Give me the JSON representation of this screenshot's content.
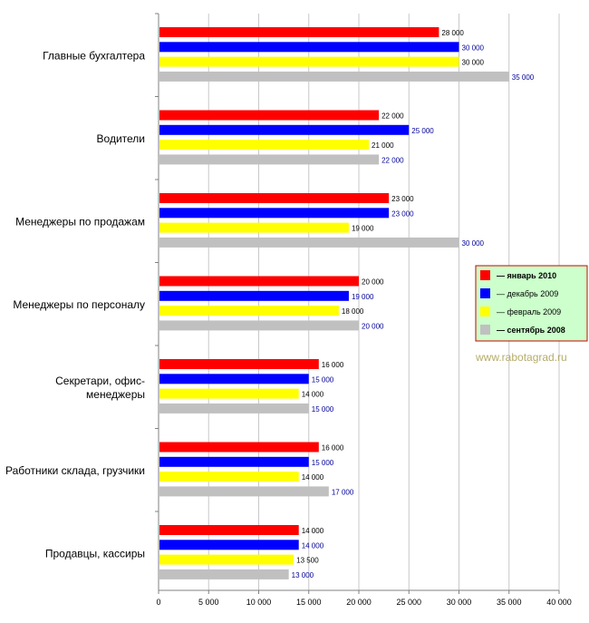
{
  "chart_data": {
    "type": "bar",
    "orientation": "horizontal",
    "categories": [
      "Главные бухгалтера",
      "Водители",
      "Менеджеры по продажам",
      "Менеджеры по персоналу",
      "Секретари, офис-менеджеры",
      "Работники склада, грузчики",
      "Продавцы, кассиры"
    ],
    "category_lines": [
      [
        "Главные бухгалтера"
      ],
      [
        "Водители"
      ],
      [
        "Менеджеры по продажам"
      ],
      [
        "Менеджеры по персоналу"
      ],
      [
        "Секретари, офис-",
        "менеджеры"
      ],
      [
        "Работники склада, грузчики"
      ],
      [
        "Продавцы, кассиры"
      ]
    ],
    "series": [
      {
        "name": "— январь 2010",
        "color": "#ff0000",
        "bold": true,
        "values": [
          28000,
          22000,
          23000,
          20000,
          16000,
          16000,
          14000
        ],
        "labels": [
          "28 000",
          "22 000",
          "23 000",
          "20 000",
          "16 000",
          "16 000",
          "14 000"
        ],
        "label_color": "#000000"
      },
      {
        "name": "— декабрь 2009",
        "color": "#0000ff",
        "bold": false,
        "values": [
          30000,
          25000,
          23000,
          19000,
          15000,
          15000,
          14000
        ],
        "labels": [
          "30 000",
          "25 000",
          "23 000",
          "19 000",
          "15 000",
          "15 000",
          "14 000"
        ],
        "label_color": "#000099"
      },
      {
        "name": "— февраль 2009",
        "color": "#ffff00",
        "bold": false,
        "values": [
          30000,
          21000,
          19000,
          18000,
          14000,
          14000,
          13500
        ],
        "labels": [
          "30 000",
          "21 000",
          "19 000",
          "18 000",
          "14 000",
          "14 000",
          "13 500"
        ],
        "label_color": "#000000"
      },
      {
        "name": "— сентябрь 2008",
        "color": "#c0c0c0",
        "bold": true,
        "values": [
          35000,
          22000,
          30000,
          20000,
          15000,
          17000,
          13000
        ],
        "labels": [
          "35 000",
          "22 000",
          "30 000",
          "20 000",
          "15 000",
          "17 000",
          "13 000"
        ],
        "label_color": "#000099"
      }
    ],
    "xlim": [
      0,
      40000
    ],
    "x_ticks": [
      0,
      5000,
      10000,
      15000,
      20000,
      25000,
      30000,
      35000,
      40000
    ],
    "x_tick_labels": [
      "0",
      "5 000",
      "10 000",
      "15 000",
      "20 000",
      "25 000",
      "30 000",
      "35 000",
      "40 000"
    ],
    "grid": true,
    "legend": {
      "placement": "right",
      "background": "#ccffcc",
      "border": "#cc0000"
    }
  },
  "watermark": "www.rabotagrad.ru"
}
